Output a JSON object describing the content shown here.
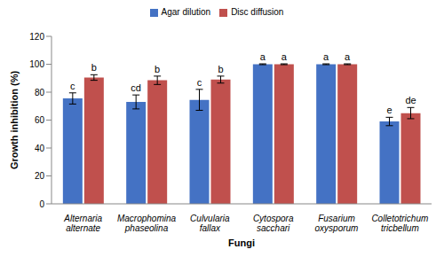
{
  "chart_data": {
    "type": "bar",
    "x_label": "Fungi",
    "y_label": "Growth inhibition (%)",
    "categories": [
      "Alternaria alternate",
      "Macrophomina phaseolina",
      "Culvularia fallax",
      "Cytospora sacchari",
      "Fusarium oxysporum",
      "Colletotrichum tricbellum"
    ],
    "series": [
      {
        "name": "Agar dilution",
        "color": "#4472c4",
        "values": [
          75.5,
          73,
          74.5,
          100,
          100,
          59
        ],
        "errors": [
          4,
          5,
          7.5,
          0.3,
          0.3,
          3
        ],
        "letters": [
          "c",
          "cd",
          "c",
          "a",
          "a",
          "e"
        ]
      },
      {
        "name": "Disc diffusion",
        "color": "#c0504d",
        "values": [
          90.5,
          88.5,
          89,
          100,
          100,
          65
        ],
        "errors": [
          2,
          3,
          2.5,
          0.3,
          0.3,
          4
        ],
        "letters": [
          "b",
          "b",
          "b",
          "a",
          "a",
          "de"
        ]
      }
    ],
    "ylim": [
      0,
      120
    ],
    "yticks": [
      0,
      20,
      40,
      60,
      80,
      100,
      120
    ],
    "grid": false,
    "legend": "top"
  }
}
